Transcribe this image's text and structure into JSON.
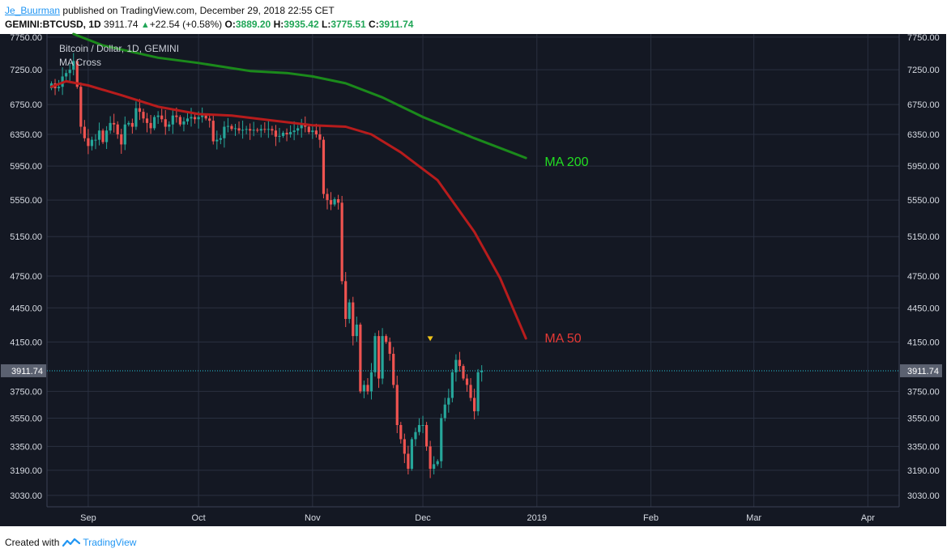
{
  "header": {
    "author": "Je_Buurman",
    "published_text": "published on TradingView.com, December 29, 2018 22:55 CET",
    "symbol": "GEMINI:BTCUSD, 1D",
    "last": "3911.74",
    "change": "+22.54 (+0.58%)",
    "open_label": "O:",
    "open": "3889.20",
    "high_label": "H:",
    "high": "3935.42",
    "low_label": "L:",
    "low": "3775.51",
    "close_label": "C:",
    "close": "3911.74"
  },
  "footer": {
    "created_with": "Created with",
    "brand": "TradingView"
  },
  "colors": {
    "bg": "#141823",
    "grid": "#2a3040",
    "up": "#26a69a",
    "down": "#ef5350",
    "ma50": "#b71c1c",
    "ma200": "#1b8a1b",
    "ma200_label": "#22dd22",
    "ma50_label": "#e53935",
    "price_line": "#26c6da",
    "marker": "#f0c419",
    "axis_text": "#d7dbe3"
  },
  "chart_data": {
    "type": "candlestick",
    "title": "Bitcoin / Dollar, 1D, GEMINI",
    "subtitle": "MA Cross",
    "last_price": 3911.74,
    "last_price_label": "3911.74",
    "y_ticks": [
      "7750.00",
      "7250.00",
      "6750.00",
      "6350.00",
      "5950.00",
      "5550.00",
      "5150.00",
      "4750.00",
      "4450.00",
      "4150.00",
      "3750.00",
      "3550.00",
      "3350.00",
      "3190.00",
      "3030.00"
    ],
    "ylim": [
      2960,
      7800
    ],
    "y_log": true,
    "x_start": "2018-08-22",
    "x_labels": [
      {
        "label": "Sep",
        "date": "2018-09-01"
      },
      {
        "label": "Oct",
        "date": "2018-10-01"
      },
      {
        "label": "Nov",
        "date": "2018-11-01"
      },
      {
        "label": "Dec",
        "date": "2018-12-01"
      },
      {
        "label": "2019",
        "date": "2019-01-01"
      },
      {
        "label": "Feb",
        "date": "2019-02-01"
      },
      {
        "label": "Mar",
        "date": "2019-03-01"
      },
      {
        "label": "Apr",
        "date": "2019-04-01"
      }
    ],
    "closes": [
      7050,
      6980,
      7000,
      7150,
      7200,
      7250,
      7380,
      7000,
      6450,
      6300,
      6200,
      6280,
      6280,
      6400,
      6250,
      6400,
      6500,
      6480,
      6350,
      6220,
      6480,
      6500,
      6450,
      6700,
      6650,
      6560,
      6500,
      6430,
      6580,
      6600,
      6550,
      6450,
      6480,
      6600,
      6580,
      6480,
      6520,
      6560,
      6580,
      6550,
      6580,
      6600,
      6560,
      6530,
      6260,
      6280,
      6300,
      6450,
      6460,
      6420,
      6430,
      6400,
      6410,
      6420,
      6400,
      6410,
      6400,
      6420,
      6410,
      6420,
      6400,
      6320,
      6330,
      6370,
      6350,
      6380,
      6400,
      6430,
      6480,
      6450,
      6380,
      6400,
      6350,
      6280,
      5620,
      5550,
      5500,
      5560,
      5520,
      4700,
      4350,
      4500,
      4200,
      4300,
      3750,
      3800,
      3750,
      3900,
      4200,
      3850,
      4200,
      4150,
      4050,
      3800,
      3500,
      3400,
      3300,
      3200,
      3400,
      3450,
      3500,
      3500,
      3350,
      3200,
      3230,
      3250,
      3550,
      3650,
      3700,
      3900,
      4000,
      3950,
      3850,
      3800,
      3700,
      3600,
      3900,
      3911.74
    ],
    "ma50": [
      {
        "date": "2018-08-22",
        "value": 7000
      },
      {
        "date": "2018-08-26",
        "value": 7080
      },
      {
        "date": "2018-09-01",
        "value": 7020
      },
      {
        "date": "2018-09-10",
        "value": 6880
      },
      {
        "date": "2018-09-20",
        "value": 6720
      },
      {
        "date": "2018-10-01",
        "value": 6620
      },
      {
        "date": "2018-10-10",
        "value": 6600
      },
      {
        "date": "2018-10-20",
        "value": 6540
      },
      {
        "date": "2018-11-01",
        "value": 6470
      },
      {
        "date": "2018-11-10",
        "value": 6450
      },
      {
        "date": "2018-11-17",
        "value": 6350
      },
      {
        "date": "2018-11-25",
        "value": 6120
      },
      {
        "date": "2018-12-05",
        "value": 5780
      },
      {
        "date": "2018-12-15",
        "value": 5200
      },
      {
        "date": "2018-12-22",
        "value": 4730
      },
      {
        "date": "2018-12-29",
        "value": 4180
      }
    ],
    "ma200": [
      {
        "date": "2018-08-28",
        "value": 7800
      },
      {
        "date": "2018-09-05",
        "value": 7620
      },
      {
        "date": "2018-09-20",
        "value": 7430
      },
      {
        "date": "2018-10-01",
        "value": 7350
      },
      {
        "date": "2018-10-15",
        "value": 7230
      },
      {
        "date": "2018-10-25",
        "value": 7200
      },
      {
        "date": "2018-11-01",
        "value": 7150
      },
      {
        "date": "2018-11-10",
        "value": 7050
      },
      {
        "date": "2018-11-20",
        "value": 6850
      },
      {
        "date": "2018-12-01",
        "value": 6580
      },
      {
        "date": "2018-12-15",
        "value": 6300
      },
      {
        "date": "2018-12-29",
        "value": 6050
      }
    ],
    "annotations": [
      {
        "text": "MA 200",
        "date": "2019-01-02",
        "value": 6000,
        "color": "#22dd22"
      },
      {
        "text": "MA 50",
        "date": "2019-01-02",
        "value": 4180,
        "color": "#e53935"
      }
    ],
    "marker": {
      "date": "2018-12-03",
      "value": 4170
    }
  }
}
